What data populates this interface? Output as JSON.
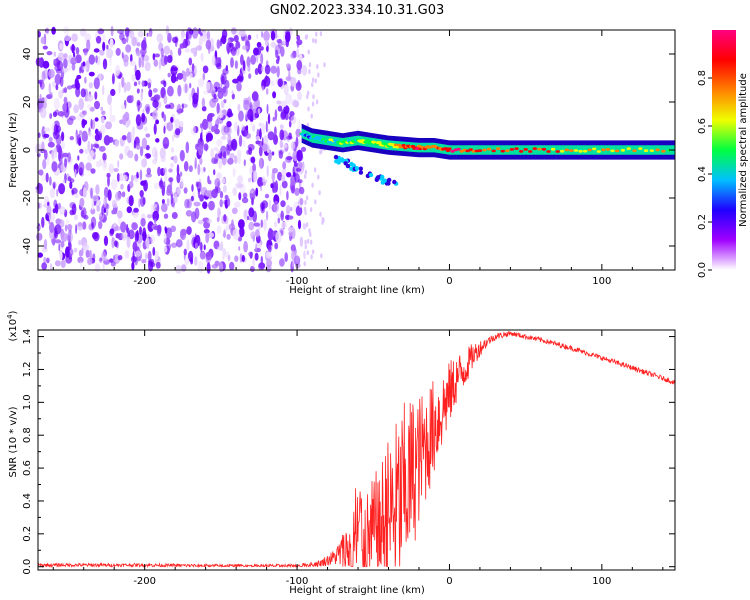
{
  "title": "GN02.2023.334.10.31.G03",
  "chart_data": [
    {
      "type": "heatmap",
      "name": "spectrogram",
      "xlabel": "Height of straight line (km)",
      "ylabel": "Frequency (Hz)",
      "xlim": [
        -270,
        148
      ],
      "ylim": [
        -50,
        50
      ],
      "xticks": [
        -200,
        -100,
        0,
        100
      ],
      "yticks": [
        -40,
        -20,
        0,
        20,
        40
      ],
      "noise_region_x": [
        -270,
        -95
      ],
      "signal_track": [
        {
          "x": -97,
          "f": 7,
          "amp": 0.35
        },
        {
          "x": -90,
          "f": 5,
          "amp": 0.4
        },
        {
          "x": -80,
          "f": 4,
          "amp": 0.45
        },
        {
          "x": -70,
          "f": 3,
          "amp": 0.5
        },
        {
          "x": -60,
          "f": 4,
          "amp": 0.5
        },
        {
          "x": -50,
          "f": 3,
          "amp": 0.55
        },
        {
          "x": -40,
          "f": 2,
          "amp": 0.6
        },
        {
          "x": -30,
          "f": 1.5,
          "amp": 0.8
        },
        {
          "x": -20,
          "f": 1,
          "amp": 0.85
        },
        {
          "x": -10,
          "f": 1,
          "amp": 0.75
        },
        {
          "x": 0,
          "f": 0,
          "amp": 0.9
        },
        {
          "x": 20,
          "f": 0,
          "amp": 0.85
        },
        {
          "x": 50,
          "f": 0,
          "amp": 0.8
        },
        {
          "x": 80,
          "f": 0,
          "amp": 0.75
        },
        {
          "x": 110,
          "f": 0,
          "amp": 0.7
        },
        {
          "x": 148,
          "f": 0,
          "amp": 0.6
        }
      ],
      "colorbar": {
        "label": "Normalized spectral amplitude",
        "ticks": [
          0.0,
          0.2,
          0.4,
          0.6,
          0.8
        ],
        "tick_labels": [
          "0.0",
          "0.2",
          "0.4",
          "0.6",
          "0.8"
        ],
        "colors": [
          "#ffffff",
          "#a000ff",
          "#2000ff",
          "#00c0ff",
          "#00ff40",
          "#f0ff00",
          "#ff8000",
          "#ff0000",
          "#ff0080"
        ]
      }
    },
    {
      "type": "line",
      "name": "snr",
      "xlabel": "Height of straight line (km)",
      "ylabel": "SNR (10 * v/v)",
      "yscale_label": "(x10",
      "yscale_exp": "4",
      "xlim": [
        -270,
        148
      ],
      "ylim": [
        -0.02,
        1.44
      ],
      "xticks": [
        -200,
        -100,
        0,
        100
      ],
      "yticks": [
        0.0,
        0.2,
        0.4,
        0.6,
        0.8,
        1.0,
        1.2,
        1.4
      ],
      "ytick_labels": [
        "0.0",
        "0.2",
        "0.4",
        "0.6",
        "0.8",
        "1.0",
        "1.2",
        "1.4"
      ],
      "color": "#ff2020",
      "series": [
        {
          "name": "SNR",
          "x": [
            -270,
            -200,
            -150,
            -100,
            -85,
            -75,
            -65,
            -60,
            -55,
            -50,
            -45,
            -40,
            -35,
            -30,
            -25,
            -20,
            -15,
            -10,
            -5,
            0,
            5,
            10,
            15,
            20,
            25,
            30,
            35,
            40,
            50,
            60,
            80,
            100,
            120,
            148
          ],
          "y": [
            0.01,
            0.01,
            0.005,
            0.005,
            0.02,
            0.06,
            0.12,
            0.2,
            0.15,
            0.2,
            0.25,
            0.3,
            0.35,
            0.45,
            0.55,
            0.65,
            0.75,
            0.85,
            0.95,
            1.05,
            1.15,
            1.2,
            1.28,
            1.33,
            1.37,
            1.4,
            1.41,
            1.42,
            1.4,
            1.38,
            1.33,
            1.27,
            1.21,
            1.12
          ],
          "spread": [
            0.01,
            0.01,
            0.01,
            0.01,
            0.02,
            0.05,
            0.2,
            0.45,
            0.3,
            0.35,
            0.4,
            0.5,
            0.55,
            0.55,
            0.5,
            0.4,
            0.35,
            0.3,
            0.25,
            0.2,
            0.15,
            0.12,
            0.08,
            0.05,
            0.03,
            0.02,
            0.02,
            0.015,
            0.015,
            0.015,
            0.015,
            0.015,
            0.015,
            0.015
          ]
        }
      ]
    }
  ]
}
